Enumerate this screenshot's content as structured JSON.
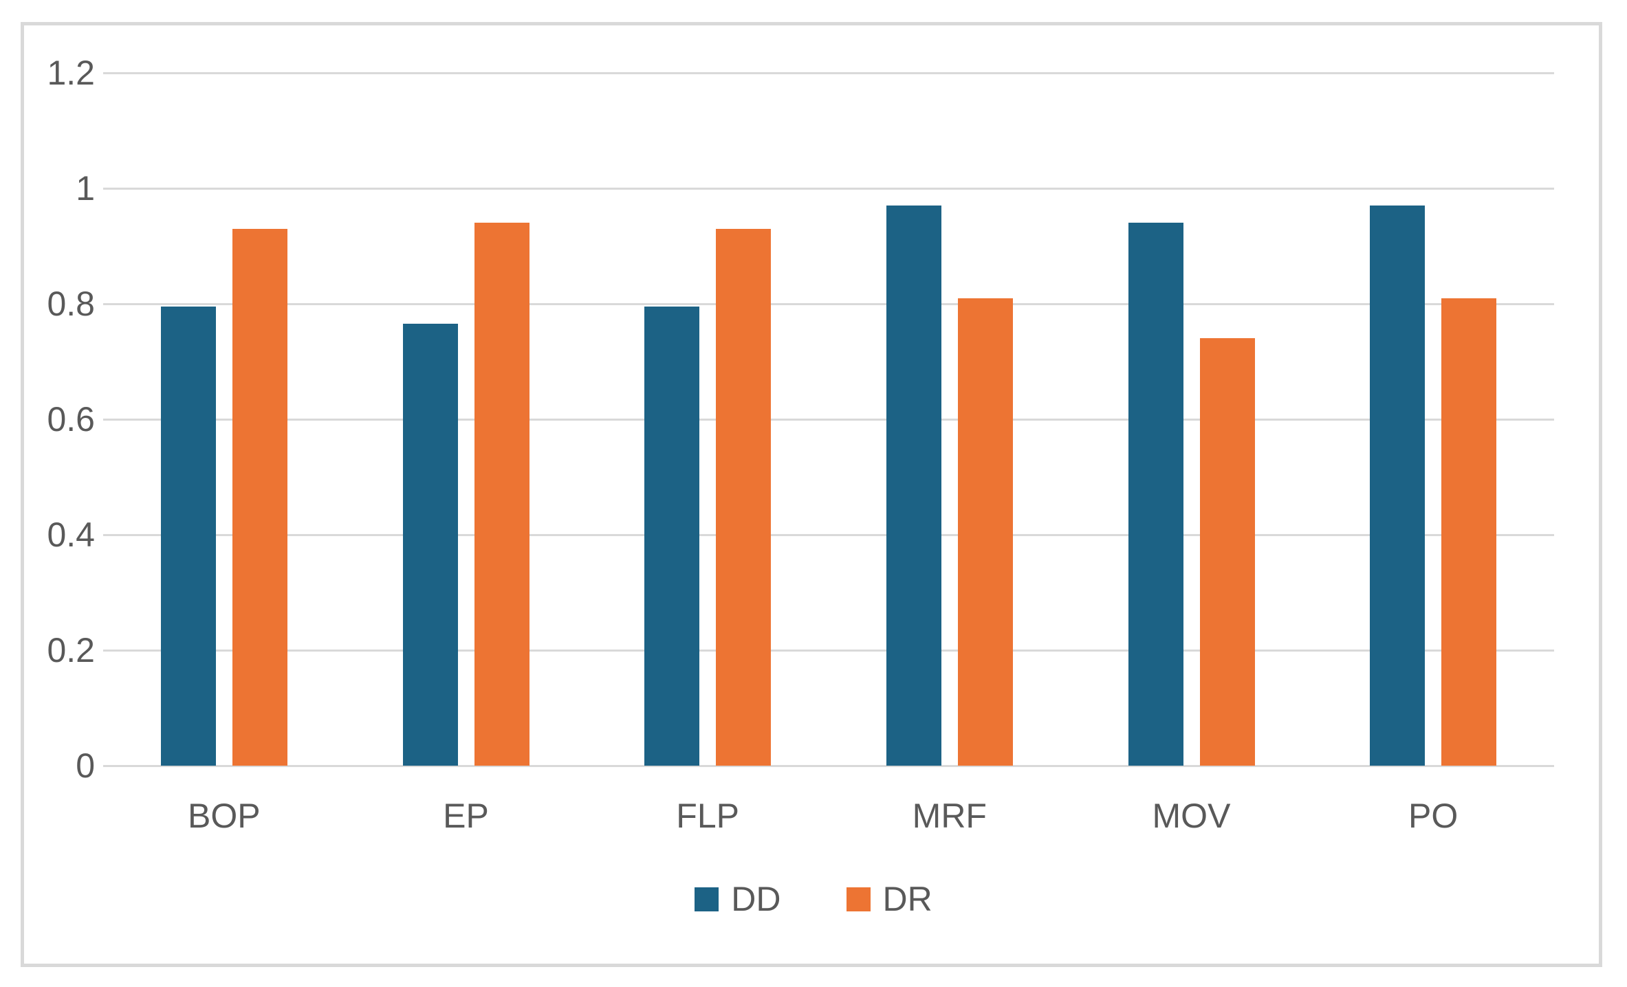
{
  "chart_data": {
    "type": "bar",
    "title": "",
    "xlabel": "",
    "ylabel": "",
    "categories": [
      "BOP",
      "EP",
      "FLP",
      "MRF",
      "MOV",
      "PO"
    ],
    "series": [
      {
        "name": "DD",
        "color": "#1C6285",
        "values": [
          0.795,
          0.765,
          0.795,
          0.97,
          0.94,
          0.97
        ]
      },
      {
        "name": "DR",
        "color": "#ED7433",
        "values": [
          0.93,
          0.94,
          0.93,
          0.81,
          0.74,
          0.81
        ]
      }
    ],
    "ylim": [
      0,
      1.2
    ],
    "yticks": [
      0,
      0.2,
      0.4,
      0.6,
      0.8,
      1,
      1.2
    ],
    "ytick_labels": [
      "0",
      "0.2",
      "0.4",
      "0.6",
      "0.8",
      "1",
      "1.2"
    ],
    "grid": "horizontal",
    "legend_position": "bottom",
    "legend_entries": [
      "DD",
      "DR"
    ]
  },
  "colors": {
    "grid": "#d9d9d9",
    "axis_line": "#d9d9d9",
    "axis_text": "#595959",
    "frame_border": "#d9d9d9",
    "background": "#ffffff",
    "series_dd": "#1C6285",
    "series_dr": "#ED7433"
  }
}
